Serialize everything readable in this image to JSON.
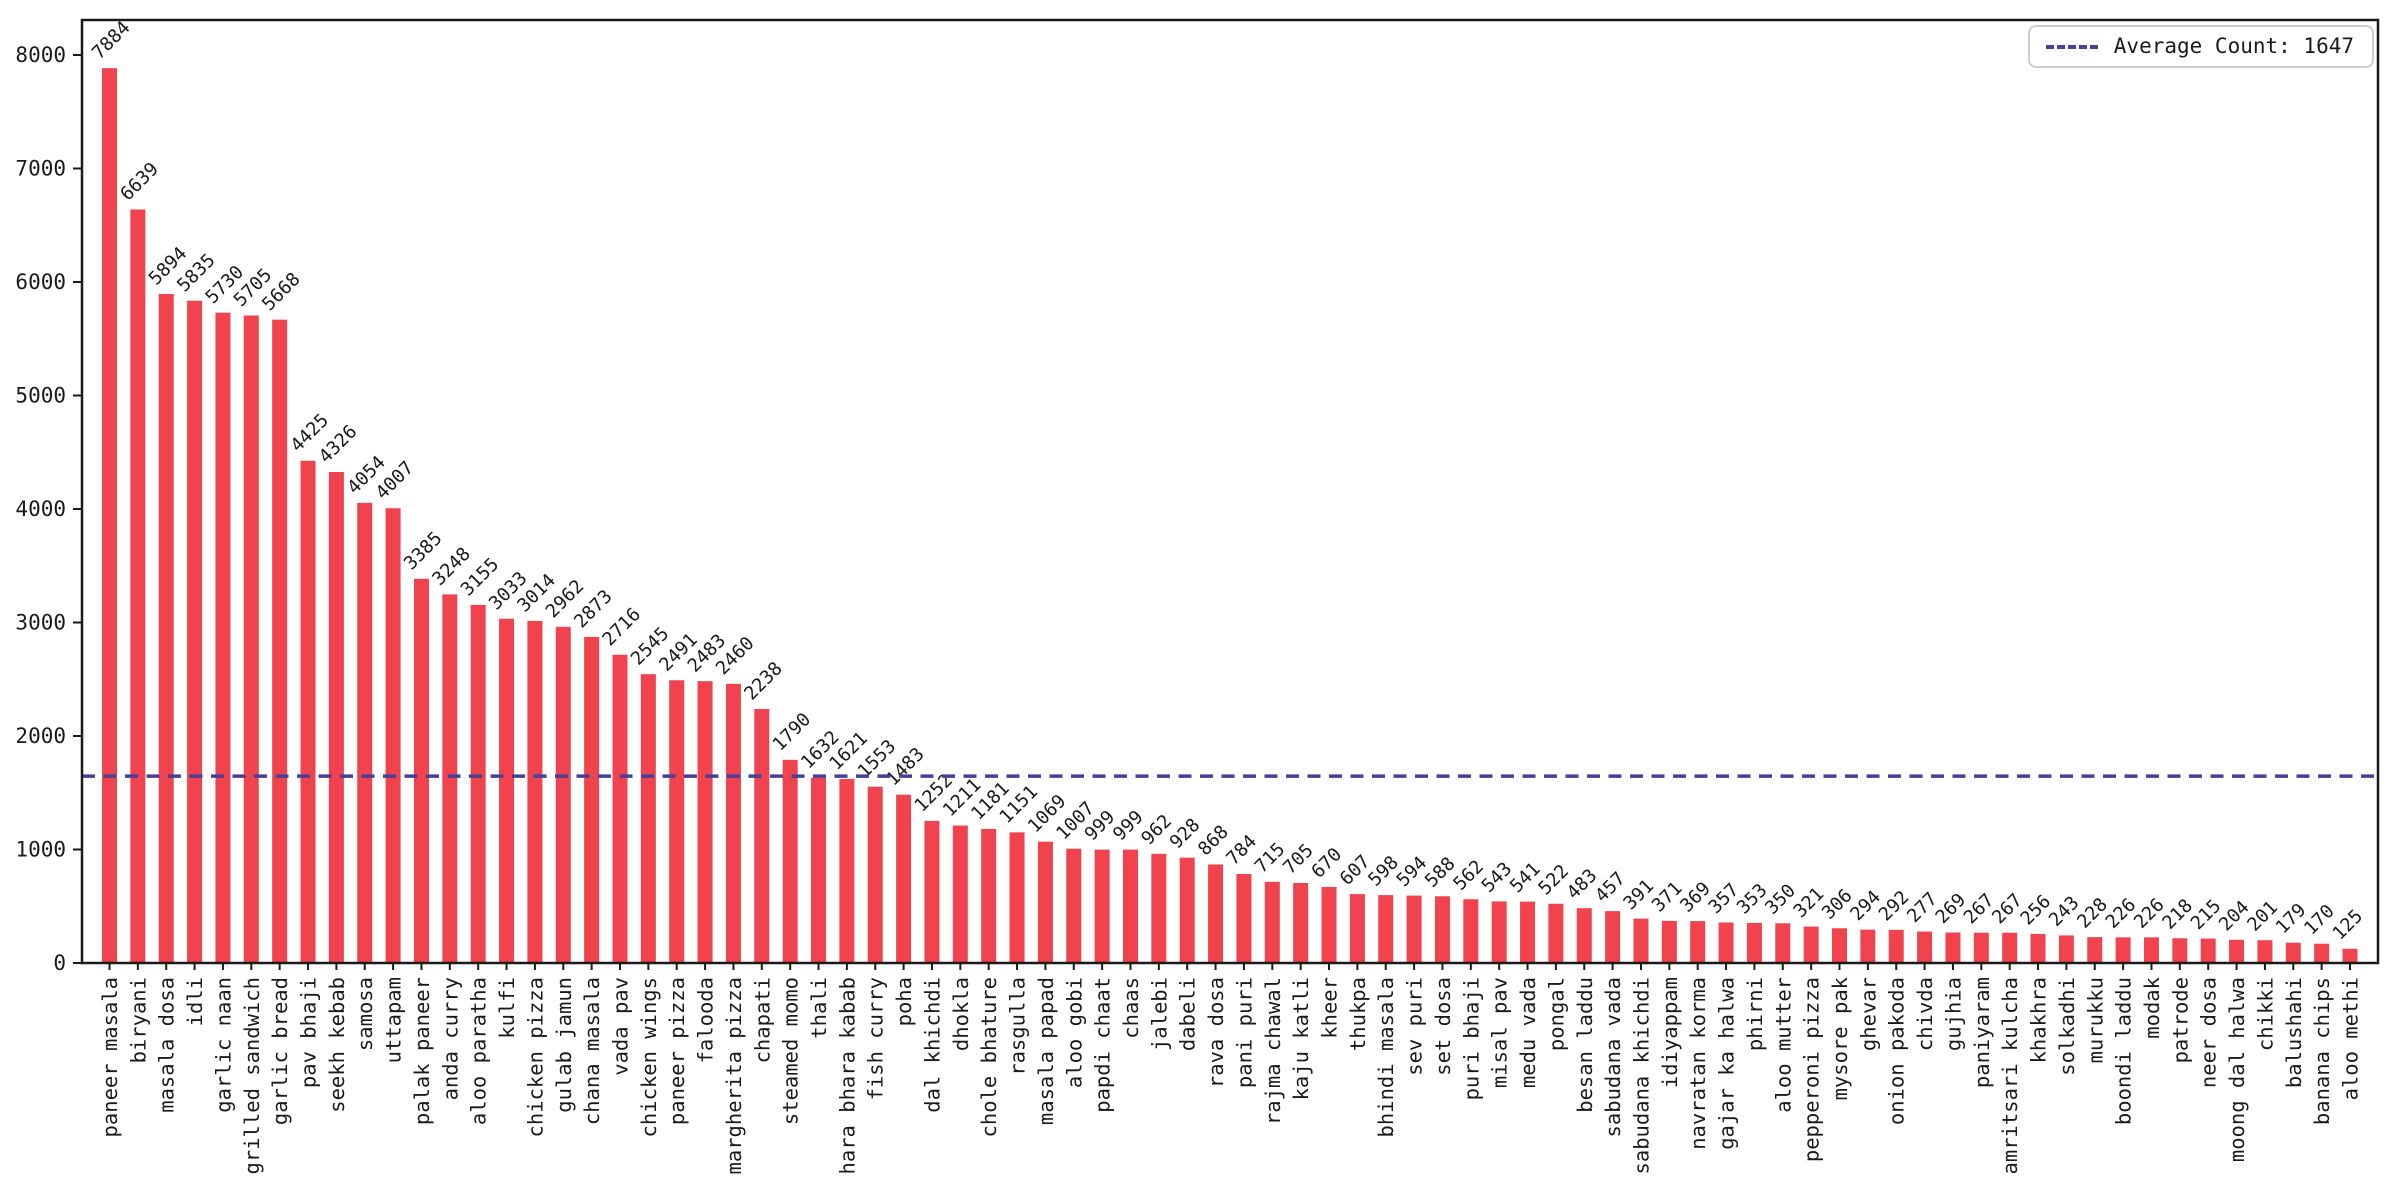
{
  "chart_data": {
    "type": "bar",
    "title": "",
    "xlabel": "",
    "ylabel": "",
    "grid": false,
    "ylim": [
      0,
      8000
    ],
    "yticks": [
      0,
      1000,
      2000,
      3000,
      4000,
      5000,
      6000,
      7000,
      8000
    ],
    "bar_color": "#f1434e",
    "average_value": 1647,
    "average_line_color": "#46409a",
    "legend": {
      "label": "Average Count: 1647",
      "position": "upper right",
      "line_style": "dashed"
    },
    "categories": [
      "paneer masala",
      "biryani",
      "masala dosa",
      "idli",
      "garlic naan",
      "grilled sandwich",
      "garlic bread",
      "pav bhaji",
      "seekh kebab",
      "samosa",
      "uttapam",
      "palak paneer",
      "anda curry",
      "aloo paratha",
      "kulfi",
      "chicken pizza",
      "gulab jamun",
      "chana masala",
      "vada pav",
      "chicken wings",
      "paneer pizza",
      "falooda",
      "margherita pizza",
      "chapati",
      "steamed momo",
      "thali",
      "hara bhara kabab",
      "fish curry",
      "poha",
      "dal khichdi",
      "dhokla",
      "chole bhature",
      "rasgulla",
      "masala papad",
      "aloo gobi",
      "papdi chaat",
      "chaas",
      "jalebi",
      "dabeli",
      "rava dosa",
      "pani puri",
      "rajma chawal",
      "kaju katli",
      "kheer",
      "thukpa",
      "bhindi masala",
      "sev puri",
      "set dosa",
      "puri bhaji",
      "misal pav",
      "medu vada",
      "pongal",
      "besan laddu",
      "sabudana vada",
      "sabudana khichdi",
      "idiyappam",
      "navratan korma",
      "gajar ka halwa",
      "phirni",
      "aloo mutter",
      "pepperoni pizza",
      "mysore pak",
      "ghevar",
      "onion pakoda",
      "chivda",
      "gujhia",
      "paniyaram",
      "amritsari kulcha",
      "khakhra",
      "solkadhi",
      "murukku",
      "boondi laddu",
      "modak",
      "patrode",
      "neer dosa",
      "moong dal halwa",
      "chikki",
      "balushahi",
      "banana chips",
      "aloo methi"
    ],
    "values": [
      7884,
      6639,
      5894,
      5835,
      5730,
      5705,
      5668,
      4425,
      4326,
      4054,
      4007,
      3385,
      3248,
      3155,
      3033,
      3014,
      2962,
      2873,
      2716,
      2545,
      2491,
      2483,
      2460,
      2238,
      1790,
      1632,
      1621,
      1553,
      1483,
      1252,
      1211,
      1181,
      1151,
      1069,
      1007,
      999,
      999,
      962,
      928,
      868,
      784,
      715,
      705,
      670,
      607,
      598,
      594,
      588,
      562,
      543,
      541,
      522,
      483,
      457,
      391,
      371,
      369,
      357,
      353,
      350,
      321,
      306,
      294,
      292,
      277,
      269,
      267,
      267,
      256,
      243,
      228,
      226,
      226,
      218,
      215,
      204,
      201,
      179,
      170,
      125
    ]
  }
}
